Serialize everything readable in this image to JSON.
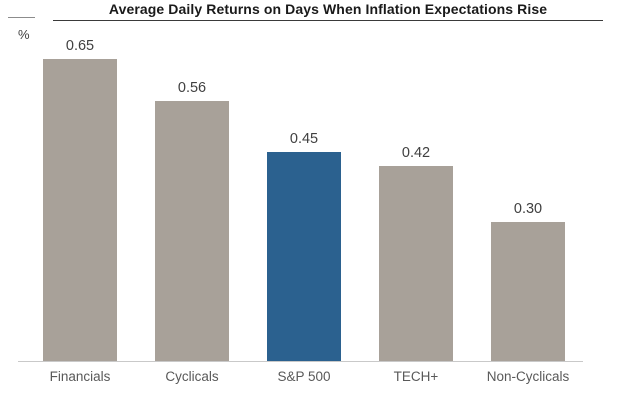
{
  "chart_data": {
    "type": "bar",
    "title": "Average Daily Returns on Days When Inflation Expectations Rise",
    "ylabel": "%",
    "xlabel": "",
    "categories": [
      "Financials",
      "Cyclicals",
      "S&P 500",
      "TECH+",
      "Non-Cyclicals"
    ],
    "values": [
      0.65,
      0.56,
      0.45,
      0.42,
      0.3
    ],
    "value_labels": [
      "0.65",
      "0.56",
      "0.45",
      "0.42",
      "0.30"
    ],
    "ylim": [
      0,
      0.78
    ],
    "grid": false,
    "legend": false,
    "highlight_index": 2,
    "highlight_category": "S&P 500",
    "bar_color": "#a8a199",
    "highlight_color": "#2b618f",
    "title_color": "#1a1a1a",
    "value_label_color": "#404040",
    "category_label_color": "#595959",
    "axis_line_color": "#c9c9c9"
  }
}
